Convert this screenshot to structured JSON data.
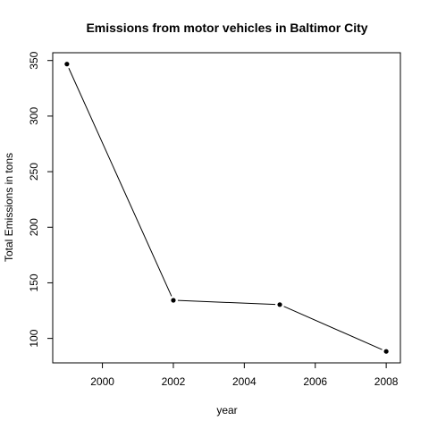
{
  "chart_data": {
    "type": "line",
    "title": "Emissions from motor vehicles in Baltimor City",
    "xlabel": "year",
    "ylabel": "Total Emissions in tons",
    "x": [
      1999,
      2002,
      2005,
      2008
    ],
    "y": [
      346.8,
      134.3,
      130.4,
      88.3
    ],
    "xlim": [
      1998.6,
      2008.4
    ],
    "ylim": [
      78,
      357
    ],
    "xticks": [
      2000,
      2002,
      2004,
      2006,
      2008
    ],
    "yticks": [
      100,
      150,
      200,
      250,
      300,
      350
    ],
    "xtick_labels": [
      "2000",
      "2002",
      "2004",
      "2006",
      "2008"
    ],
    "ytick_labels": [
      "100",
      "150",
      "200",
      "250",
      "300",
      "350"
    ],
    "markers": "filled-circle",
    "line_color": "#000000",
    "grid": false,
    "legend": "none"
  }
}
